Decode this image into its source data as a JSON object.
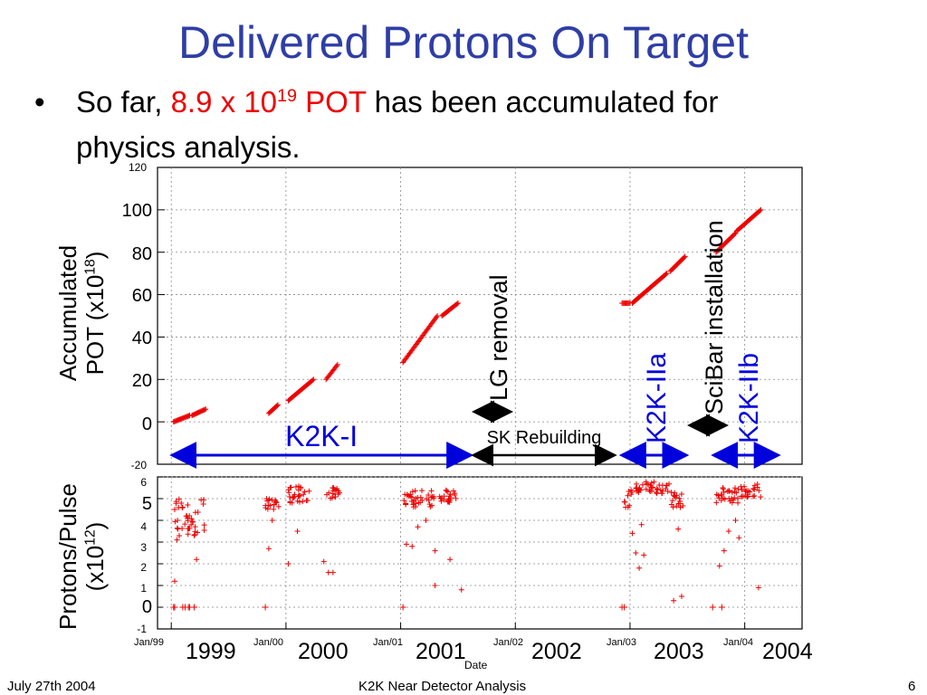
{
  "slide": {
    "title": "Delivered Protons On Target",
    "bullet": {
      "prefix": "So far,",
      "value_mantissa": "8.9 x 10",
      "value_exponent": "19",
      "value_unit": "POT",
      "suffix_line1": "has been accumulated for",
      "suffix_line2": "physics analysis."
    },
    "footer": {
      "date": "July 27th 2004",
      "center": "K2K Near Detector Analysis",
      "page": "6"
    }
  },
  "colors": {
    "title": "#2f3ea6",
    "highlight": "#ee0000",
    "data": "#ee0000",
    "period_arrow": "#0000dd",
    "gap_arrow": "#000000"
  },
  "chart_data": [
    {
      "type": "scatter",
      "ylabel_main": "Accumulated",
      "ylabel_unit_pre": "POT (x10",
      "ylabel_unit_exp": "18",
      "ylabel_unit_post": ")",
      "xlabel": "Date",
      "ylim": [
        -20,
        120
      ],
      "ytick_labels_large": [
        "0",
        "20",
        "40",
        "60",
        "80",
        "100"
      ],
      "ytick_labels_small": [
        "-20",
        "120"
      ],
      "x_tick_labels": [
        "Jan/99",
        "Jan/00",
        "Jan/01",
        "Jan/02",
        "Jan/03",
        "Jan/04"
      ],
      "year_labels": [
        "1999",
        "2000",
        "2001",
        "2002",
        "2003",
        "2004"
      ],
      "grid": true,
      "segments": [
        {
          "x": [
            1999.02,
            1999.16
          ],
          "y": [
            0,
            3
          ]
        },
        {
          "x": [
            1999.18,
            1999.3
          ],
          "y": [
            3,
            6
          ]
        },
        {
          "x": [
            1999.85,
            1999.93
          ],
          "y": [
            4,
            8
          ]
        },
        {
          "x": [
            2000.02,
            2000.24
          ],
          "y": [
            10,
            20
          ]
        },
        {
          "x": [
            2000.35,
            2000.45
          ],
          "y": [
            20,
            27
          ]
        },
        {
          "x": [
            2001.02,
            2001.32
          ],
          "y": [
            28,
            50
          ]
        },
        {
          "x": [
            2001.36,
            2001.5
          ],
          "y": [
            50,
            56
          ]
        },
        {
          "x": [
            2002.93,
            2003.0
          ],
          "y": [
            56,
            56
          ]
        },
        {
          "x": [
            2003.02,
            2003.32
          ],
          "y": [
            56,
            70
          ]
        },
        {
          "x": [
            2003.35,
            2003.48
          ],
          "y": [
            71,
            78
          ]
        },
        {
          "x": [
            2003.75,
            2003.92
          ],
          "y": [
            80,
            89
          ]
        },
        {
          "x": [
            2003.93,
            2004.14
          ],
          "y": [
            90,
            100
          ]
        }
      ],
      "annotations": {
        "periods": [
          {
            "label": "K2K-I",
            "x_start": 1999.0,
            "x_end": 2001.62
          },
          {
            "label": "K2K-IIa",
            "x_start": 2002.92,
            "x_end": 2003.5
          },
          {
            "label": "K2K-IIb",
            "x_start": 2003.72,
            "x_end": 2004.3
          }
        ],
        "gap_arrow": {
          "label": "SK Rebuilding",
          "x_start": 2001.62,
          "x_end": 2002.88
        },
        "events": [
          {
            "label": "LG removal",
            "x": 2001.88
          },
          {
            "label": "SciBar installation",
            "x": 2003.6
          }
        ]
      }
    },
    {
      "type": "scatter",
      "ylabel_main": "Protons/Pulse",
      "ylabel_unit_pre": "(x10",
      "ylabel_unit_exp": "12",
      "ylabel_unit_post": ")",
      "ylim": [
        -1,
        6
      ],
      "ytick_labels_large": [
        "0",
        "5"
      ],
      "ytick_labels_small": [
        "-1",
        "1",
        "2",
        "3",
        "4",
        "6"
      ],
      "grid": true,
      "clusters": [
        {
          "x": [
            1999.02,
            1999.3
          ],
          "y": [
            3.2,
            5.0
          ]
        },
        {
          "x": [
            1999.82,
            1999.95
          ],
          "y": [
            4.5,
            5.0
          ]
        },
        {
          "x": [
            2000.02,
            2000.22
          ],
          "y": [
            4.8,
            5.6
          ]
        },
        {
          "x": [
            2000.35,
            2000.47
          ],
          "y": [
            5.0,
            5.5
          ]
        },
        {
          "x": [
            2001.02,
            2001.3
          ],
          "y": [
            4.6,
            5.4
          ]
        },
        {
          "x": [
            2001.34,
            2001.5
          ],
          "y": [
            4.8,
            5.4
          ]
        },
        {
          "x": [
            2002.95,
            2003.02
          ],
          "y": [
            4.6,
            5.4
          ]
        },
        {
          "x": [
            2003.05,
            2003.35
          ],
          "y": [
            5.2,
            5.8
          ]
        },
        {
          "x": [
            2003.36,
            2003.48
          ],
          "y": [
            4.6,
            5.3
          ]
        },
        {
          "x": [
            2003.75,
            2003.95
          ],
          "y": [
            4.8,
            5.5
          ]
        },
        {
          "x": [
            2003.96,
            2004.14
          ],
          "y": [
            5.0,
            5.7
          ]
        }
      ],
      "zero_x": [
        1999.02,
        1999.03,
        1999.1,
        1999.12,
        1999.15,
        1999.16,
        1999.2,
        1999.82,
        2001.02,
        2002.93,
        2002.95,
        2003.72,
        2003.8
      ],
      "outliers": [
        {
          "x": 1999.03,
          "y": 4.5
        },
        {
          "x": 1999.05,
          "y": 3.1
        },
        {
          "x": 1999.03,
          "y": 1.2
        },
        {
          "x": 1999.13,
          "y": 4.2
        },
        {
          "x": 1999.22,
          "y": 2.2
        },
        {
          "x": 1999.2,
          "y": 3.3
        },
        {
          "x": 1999.85,
          "y": 2.7
        },
        {
          "x": 1999.88,
          "y": 4.0
        },
        {
          "x": 2000.02,
          "y": 2.0
        },
        {
          "x": 2000.1,
          "y": 3.5
        },
        {
          "x": 2000.33,
          "y": 2.1
        },
        {
          "x": 2000.37,
          "y": 1.6
        },
        {
          "x": 2000.41,
          "y": 1.6
        },
        {
          "x": 2001.05,
          "y": 2.9
        },
        {
          "x": 2001.1,
          "y": 2.8
        },
        {
          "x": 2001.15,
          "y": 3.7
        },
        {
          "x": 2001.22,
          "y": 4.0
        },
        {
          "x": 2001.3,
          "y": 2.6
        },
        {
          "x": 2001.43,
          "y": 2.2
        },
        {
          "x": 2001.53,
          "y": 0.8
        },
        {
          "x": 2001.3,
          "y": 1.0
        },
        {
          "x": 2003.02,
          "y": 3.4
        },
        {
          "x": 2003.05,
          "y": 2.5
        },
        {
          "x": 2003.08,
          "y": 1.8
        },
        {
          "x": 2003.12,
          "y": 2.4
        },
        {
          "x": 2003.1,
          "y": 3.8
        },
        {
          "x": 2003.38,
          "y": 0.3
        },
        {
          "x": 2003.42,
          "y": 3.6
        },
        {
          "x": 2003.45,
          "y": 0.5
        },
        {
          "x": 2003.78,
          "y": 1.9
        },
        {
          "x": 2003.82,
          "y": 2.6
        },
        {
          "x": 2003.86,
          "y": 3.5
        },
        {
          "x": 2003.92,
          "y": 4.0
        },
        {
          "x": 2003.95,
          "y": 3.2
        },
        {
          "x": 2004.12,
          "y": 0.9
        }
      ]
    }
  ]
}
